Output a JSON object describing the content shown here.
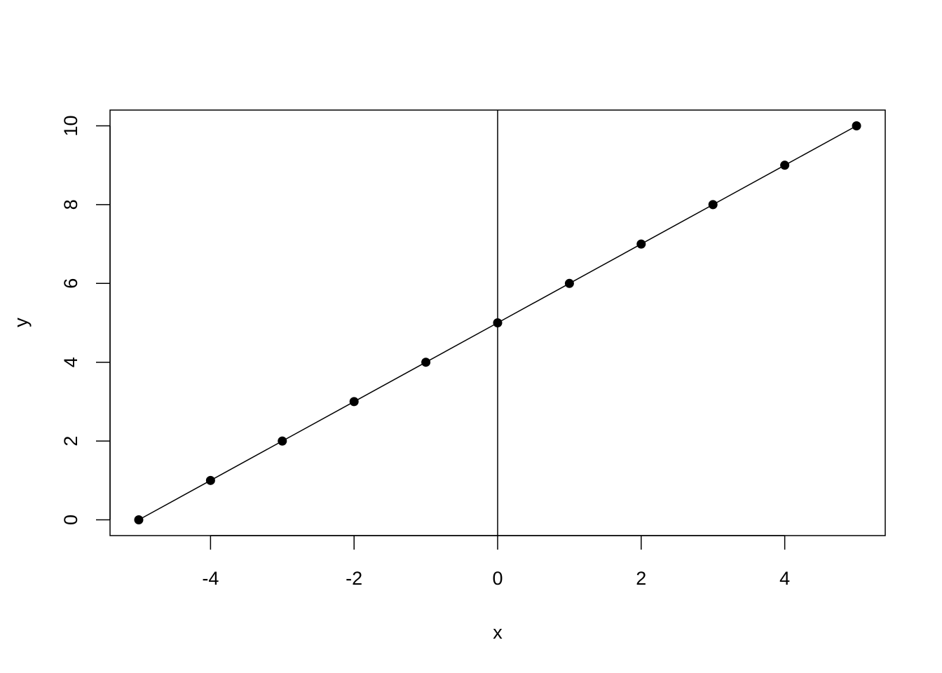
{
  "chart_data": {
    "type": "line",
    "title": "",
    "xlabel": "x",
    "ylabel": "y",
    "xlim": [
      -5.4,
      5.4
    ],
    "ylim": [
      -0.4,
      10.4
    ],
    "xticks": [
      -4,
      -2,
      0,
      2,
      4
    ],
    "yticks": [
      0,
      2,
      4,
      6,
      8,
      10
    ],
    "grid": false,
    "markers": "filled-circle",
    "line_color": "#000000",
    "point_color": "#000000",
    "reference_lines": [
      {
        "orientation": "vertical",
        "x": 0
      }
    ],
    "x": [
      -5,
      -4,
      -3,
      -2,
      -1,
      0,
      1,
      2,
      3,
      4,
      5
    ],
    "y": [
      0,
      1,
      2,
      3,
      4,
      5,
      6,
      7,
      8,
      9,
      10
    ]
  }
}
